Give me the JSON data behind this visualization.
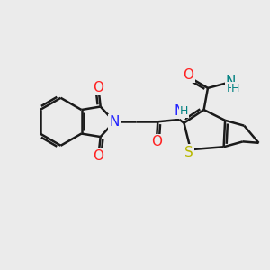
{
  "bg_color": "#ebebeb",
  "bond_color": "#1a1a1a",
  "N_color": "#2020ff",
  "O_color": "#ff2020",
  "S_color": "#b8b800",
  "NH_color": "#008080",
  "bond_width": 1.8,
  "fig_size": [
    3.0,
    3.0
  ],
  "dpi": 100,
  "xlim": [
    0,
    10
  ],
  "ylim": [
    0,
    10
  ]
}
